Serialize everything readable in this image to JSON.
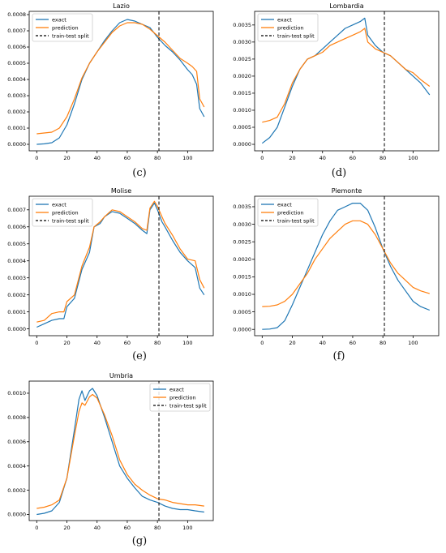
{
  "chart_data": [
    {
      "type": "line",
      "title": "Lazio",
      "caption": "(c)",
      "xlim": [
        -5,
        117
      ],
      "ylim": [
        -4e-05,
        0.00082
      ],
      "xticks": [
        0,
        20,
        40,
        60,
        80,
        100
      ],
      "xtick_labels": [
        "0",
        "20",
        "40",
        "60",
        "80",
        "100"
      ],
      "yticks": [
        0,
        0.0001,
        0.0002,
        0.0003,
        0.0004,
        0.0005,
        0.0006,
        0.0007,
        0.0008
      ],
      "ytick_labels": [
        "0.0000",
        "0.0001",
        "0.0002",
        "0.0003",
        "0.0004",
        "0.0005",
        "0.0006",
        "0.0007",
        "0.0008"
      ],
      "split_x": 81,
      "legend": {
        "placement": "top-left",
        "entries": [
          {
            "label": "exact",
            "style": "solid",
            "color": "#1f77b4"
          },
          {
            "label": "prediction",
            "style": "solid",
            "color": "#ff7f0e"
          },
          {
            "label": "train-test split",
            "style": "dashed",
            "color": "#000000"
          }
        ]
      },
      "series": [
        {
          "name": "exact",
          "color": "#1f77b4",
          "x": [
            0,
            5,
            10,
            15,
            20,
            25,
            30,
            35,
            40,
            45,
            50,
            55,
            60,
            65,
            70,
            75,
            80,
            85,
            90,
            95,
            100,
            103,
            106,
            108,
            111
          ],
          "y": [
            0,
            3e-06,
            1e-05,
            4e-05,
            0.00012,
            0.00025,
            0.0004,
            0.0005,
            0.00057,
            0.00064,
            0.0007,
            0.00075,
            0.00077,
            0.00076,
            0.00074,
            0.00072,
            0.00066,
            0.00061,
            0.00057,
            0.00052,
            0.00046,
            0.00043,
            0.00037,
            0.00022,
            0.00017
          ]
        },
        {
          "name": "prediction",
          "color": "#ff7f0e",
          "x": [
            0,
            5,
            10,
            15,
            20,
            25,
            30,
            35,
            40,
            45,
            50,
            55,
            60,
            65,
            70,
            75,
            80,
            85,
            90,
            95,
            100,
            103,
            106,
            108,
            111
          ],
          "y": [
            6.5e-05,
            7e-05,
            7.5e-05,
            0.0001,
            0.00017,
            0.00028,
            0.00041,
            0.0005,
            0.00057,
            0.00063,
            0.00069,
            0.00073,
            0.00075,
            0.00075,
            0.00074,
            0.00071,
            0.00067,
            0.00063,
            0.00058,
            0.00053,
            0.0005,
            0.00048,
            0.00045,
            0.00028,
            0.00023
          ]
        }
      ]
    },
    {
      "type": "line",
      "title": "Lombardia",
      "caption": "(d)",
      "xlim": [
        -5,
        117
      ],
      "ylim": [
        -0.00019,
        0.0039
      ],
      "xticks": [
        0,
        20,
        40,
        60,
        80,
        100
      ],
      "xtick_labels": [
        "0",
        "20",
        "40",
        "60",
        "80",
        "100"
      ],
      "yticks": [
        0,
        0.0005,
        0.001,
        0.0015,
        0.002,
        0.0025,
        0.003,
        0.0035
      ],
      "ytick_labels": [
        "0.0000",
        "0.0005",
        "0.0010",
        "0.0015",
        "0.0020",
        "0.0025",
        "0.0030",
        "0.0035"
      ],
      "split_x": 81,
      "legend": {
        "placement": "top-left",
        "entries": [
          {
            "label": "exact",
            "style": "solid",
            "color": "#1f77b4"
          },
          {
            "label": "prediction",
            "style": "solid",
            "color": "#ff7f0e"
          },
          {
            "label": "train-test split",
            "style": "dashed",
            "color": "#000000"
          }
        ]
      },
      "series": [
        {
          "name": "exact",
          "color": "#1f77b4",
          "x": [
            0,
            5,
            10,
            15,
            20,
            25,
            30,
            35,
            40,
            45,
            50,
            55,
            60,
            65,
            68,
            70,
            75,
            80,
            85,
            90,
            95,
            100,
            105,
            111
          ],
          "y": [
            3e-05,
            0.0002,
            0.0005,
            0.0011,
            0.0017,
            0.0022,
            0.0025,
            0.0026,
            0.0028,
            0.003,
            0.0032,
            0.0034,
            0.0035,
            0.0036,
            0.0037,
            0.0032,
            0.0029,
            0.0027,
            0.0026,
            0.0024,
            0.0022,
            0.002,
            0.0018,
            0.00145
          ]
        },
        {
          "name": "prediction",
          "color": "#ff7f0e",
          "x": [
            0,
            5,
            10,
            15,
            20,
            25,
            30,
            35,
            40,
            45,
            50,
            55,
            60,
            65,
            68,
            70,
            75,
            80,
            85,
            90,
            95,
            100,
            105,
            111
          ],
          "y": [
            0.00065,
            0.0007,
            0.0008,
            0.0012,
            0.0018,
            0.0022,
            0.0025,
            0.0026,
            0.0027,
            0.0029,
            0.003,
            0.0031,
            0.0032,
            0.0033,
            0.0034,
            0.003,
            0.0028,
            0.0027,
            0.0026,
            0.0024,
            0.0022,
            0.0021,
            0.0019,
            0.0017
          ]
        }
      ]
    },
    {
      "type": "line",
      "title": "Molise",
      "caption": "(e)",
      "xlim": [
        -5,
        117
      ],
      "ylim": [
        -4e-05,
        0.00078
      ],
      "xticks": [
        0,
        20,
        40,
        60,
        80,
        100
      ],
      "xtick_labels": [
        "0",
        "20",
        "40",
        "60",
        "80",
        "100"
      ],
      "yticks": [
        0,
        0.0001,
        0.0002,
        0.0003,
        0.0004,
        0.0005,
        0.0006,
        0.0007
      ],
      "ytick_labels": [
        "0.0000",
        "0.0001",
        "0.0002",
        "0.0003",
        "0.0004",
        "0.0005",
        "0.0006",
        "0.0007"
      ],
      "split_x": 81,
      "legend": {
        "placement": "top-left",
        "entries": [
          {
            "label": "exact",
            "style": "solid",
            "color": "#1f77b4"
          },
          {
            "label": "prediction",
            "style": "solid",
            "color": "#ff7f0e"
          },
          {
            "label": "train-test split",
            "style": "dashed",
            "color": "#000000"
          }
        ]
      },
      "series": [
        {
          "name": "exact",
          "color": "#1f77b4",
          "x": [
            0,
            5,
            10,
            15,
            18,
            20,
            25,
            30,
            35,
            38,
            42,
            45,
            50,
            55,
            60,
            65,
            70,
            73,
            75,
            78,
            80,
            83,
            85,
            90,
            95,
            100,
            105,
            108,
            111
          ],
          "y": [
            1e-05,
            3e-05,
            5e-05,
            6e-05,
            6e-05,
            0.00013,
            0.00018,
            0.00035,
            0.00045,
            0.0006,
            0.00062,
            0.00066,
            0.00069,
            0.00068,
            0.00065,
            0.00062,
            0.00058,
            0.00056,
            0.0007,
            0.00074,
            0.0007,
            0.00063,
            0.0006,
            0.00052,
            0.00045,
            0.0004,
            0.00036,
            0.00024,
            0.0002
          ]
        },
        {
          "name": "prediction",
          "color": "#ff7f0e",
          "x": [
            0,
            5,
            10,
            15,
            18,
            20,
            25,
            30,
            35,
            38,
            42,
            45,
            50,
            55,
            60,
            65,
            70,
            73,
            75,
            78,
            80,
            83,
            85,
            90,
            95,
            100,
            105,
            108,
            111
          ],
          "y": [
            4e-05,
            5e-05,
            9e-05,
            0.0001,
            0.0001,
            0.00016,
            0.0002,
            0.00037,
            0.00048,
            0.0006,
            0.00063,
            0.00066,
            0.0007,
            0.00069,
            0.00066,
            0.00063,
            0.00059,
            0.00058,
            0.00071,
            0.00075,
            0.00072,
            0.00066,
            0.00062,
            0.00055,
            0.00047,
            0.00041,
            0.0004,
            0.00029,
            0.00024
          ]
        }
      ]
    },
    {
      "type": "line",
      "title": "Piemonte",
      "caption": "(f)",
      "xlim": [
        -5,
        117
      ],
      "ylim": [
        -0.00018,
        0.0038
      ],
      "xticks": [
        0,
        20,
        40,
        60,
        80,
        100
      ],
      "xtick_labels": [
        "0",
        "20",
        "40",
        "60",
        "80",
        "100"
      ],
      "yticks": [
        0,
        0.0005,
        0.001,
        0.0015,
        0.002,
        0.0025,
        0.003,
        0.0035
      ],
      "ytick_labels": [
        "0.0000",
        "0.0005",
        "0.0010",
        "0.0015",
        "0.0020",
        "0.0025",
        "0.0030",
        "0.0035"
      ],
      "split_x": 81,
      "legend": {
        "placement": "top-left",
        "entries": [
          {
            "label": "exact",
            "style": "solid",
            "color": "#1f77b4"
          },
          {
            "label": "prediction",
            "style": "solid",
            "color": "#ff7f0e"
          },
          {
            "label": "train-test split",
            "style": "dashed",
            "color": "#000000"
          }
        ]
      },
      "series": [
        {
          "name": "exact",
          "color": "#1f77b4",
          "x": [
            0,
            5,
            10,
            15,
            20,
            25,
            30,
            35,
            40,
            45,
            50,
            55,
            60,
            65,
            70,
            75,
            80,
            85,
            90,
            95,
            100,
            105,
            111
          ],
          "y": [
            0,
            1e-05,
            5e-05,
            0.00025,
            0.0007,
            0.0012,
            0.0017,
            0.0022,
            0.0027,
            0.0031,
            0.0034,
            0.0035,
            0.0036,
            0.0036,
            0.0034,
            0.0029,
            0.0023,
            0.0018,
            0.0014,
            0.0011,
            0.0008,
            0.00065,
            0.00055
          ]
        },
        {
          "name": "prediction",
          "color": "#ff7f0e",
          "x": [
            0,
            5,
            10,
            15,
            20,
            25,
            30,
            35,
            40,
            45,
            50,
            55,
            60,
            65,
            70,
            75,
            80,
            85,
            90,
            95,
            100,
            105,
            111
          ],
          "y": [
            0.00065,
            0.00066,
            0.0007,
            0.0008,
            0.001,
            0.0013,
            0.0016,
            0.002,
            0.0023,
            0.0026,
            0.0028,
            0.003,
            0.0031,
            0.0031,
            0.003,
            0.0027,
            0.0023,
            0.0019,
            0.0016,
            0.0014,
            0.0012,
            0.0011,
            0.00102
          ]
        }
      ]
    },
    {
      "type": "line",
      "title": "Umbria",
      "caption": "(g)",
      "xlim": [
        -5,
        117
      ],
      "ylim": [
        -5e-05,
        0.0011
      ],
      "xticks": [
        0,
        20,
        40,
        60,
        80,
        100
      ],
      "xtick_labels": [
        "0",
        "20",
        "40",
        "60",
        "80",
        "100"
      ],
      "yticks": [
        0,
        0.0002,
        0.0004,
        0.0006,
        0.0008,
        0.001
      ],
      "ytick_labels": [
        "0.0000",
        "0.0002",
        "0.0004",
        "0.0006",
        "0.0008",
        "0.0010"
      ],
      "split_x": 81,
      "legend": {
        "placement": "top-right",
        "entries": [
          {
            "label": "exact",
            "style": "solid",
            "color": "#1f77b4"
          },
          {
            "label": "prediction",
            "style": "solid",
            "color": "#ff7f0e"
          },
          {
            "label": "train-test split",
            "style": "dashed",
            "color": "#000000"
          }
        ]
      },
      "series": [
        {
          "name": "exact",
          "color": "#1f77b4",
          "x": [
            0,
            5,
            10,
            15,
            20,
            25,
            28,
            30,
            32,
            35,
            37,
            40,
            45,
            50,
            55,
            60,
            65,
            70,
            75,
            80,
            85,
            90,
            95,
            100,
            105,
            111
          ],
          "y": [
            0,
            1e-05,
            3e-05,
            0.0001,
            0.0003,
            0.0007,
            0.00095,
            0.00102,
            0.00094,
            0.00102,
            0.00104,
            0.00098,
            0.0008,
            0.0006,
            0.0004,
            0.0003,
            0.00022,
            0.00015,
            0.00012,
            0.0001,
            7e-05,
            5e-05,
            4e-05,
            4e-05,
            3e-05,
            2e-05
          ]
        },
        {
          "name": "prediction",
          "color": "#ff7f0e",
          "x": [
            0,
            5,
            10,
            15,
            20,
            25,
            28,
            30,
            32,
            35,
            37,
            40,
            45,
            50,
            55,
            60,
            65,
            70,
            75,
            80,
            85,
            90,
            95,
            100,
            105,
            111
          ],
          "y": [
            5e-05,
            6e-05,
            8e-05,
            0.00012,
            0.0003,
            0.00065,
            0.00085,
            0.00092,
            0.0009,
            0.00097,
            0.00099,
            0.00096,
            0.00082,
            0.00065,
            0.00045,
            0.00033,
            0.00025,
            0.0002,
            0.00016,
            0.00013,
            0.00012,
            0.0001,
            9e-05,
            8e-05,
            8e-05,
            7e-05
          ]
        }
      ]
    }
  ]
}
